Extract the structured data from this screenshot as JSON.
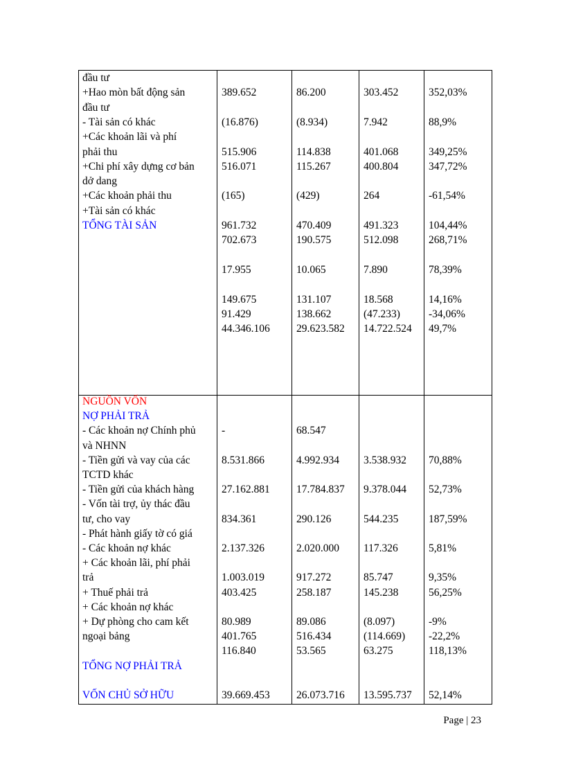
{
  "blocks": [
    {
      "labels": [
        "đầu tư",
        "+Hao mòn bất động sản",
        "đầu tư",
        "- Tài sản có khác",
        "+Các khoản lãi và phí",
        "phải thu",
        "+Chi phí xây dựng cơ bản",
        "dở dang",
        "+Các khoản phải thu",
        "+Tài sản có khác",
        "TỔNG TÀI SẢN"
      ],
      "columns": [
        [
          "389.652",
          "(16.876)",
          "515.906",
          "516.071",
          "(165)",
          "961.732",
          "702.673",
          "17.955",
          "149.675",
          "91.429",
          "44.346.106"
        ],
        [
          "86.200",
          "(8.934)",
          "114.838",
          "115.267",
          "(429)",
          "470.409",
          "190.575",
          "10.065",
          "131.107",
          "138.662",
          "29.623.582"
        ],
        [
          "303.452",
          "7.942",
          "401.068",
          "400.804",
          "264",
          "491.323",
          "512.098",
          "7.890",
          "18.568",
          "(47.233)",
          "14.722.524"
        ],
        [
          "352,03%",
          "88,9%",
          "349,25%",
          "347,72%",
          "-61,54%",
          "104,44%",
          "268,71%",
          "78,39%",
          "14,16%",
          "-34,06%",
          "49,7%"
        ]
      ]
    },
    {
      "labels": [
        "NGUỒN VỐN",
        "NỢ PHẢI TRẢ",
        "- Các khoản nợ Chính phủ",
        "và NHNN",
        "- Tiền gửi và vay của các",
        "TCTD khác",
        "- Tiền gửi của khách hàng",
        "- Vốn tài trợ, ủy thác đầu",
        "tư, cho vay",
        "- Phát hành giấy tờ có giá",
        "- Các khoản nợ khác",
        "+ Các khoản lãi, phí phải",
        "trả",
        "+ Thuế phải trả",
        "+ Các khoản nợ khác",
        "+ Dự phòng cho cam kết",
        "ngoại bảng",
        "TỔNG NỢ PHẢI TRẢ",
        "VỐN CHỦ SỞ HỮU"
      ],
      "columns": [
        [
          "-",
          "8.531.866",
          "27.162.881",
          "834.361",
          "2.137.326",
          "1.003.019",
          "403.425",
          "80.989",
          "401.765",
          "116.840",
          "39.669.453"
        ],
        [
          "68.547",
          "4.992.934",
          "17.784.837",
          "290.126",
          "2.020.000",
          "917.272",
          "258.187",
          "89.086",
          "516.434",
          "53.565",
          "26.073.716"
        ],
        [
          "3.538.932",
          "9.378.044",
          "544.235",
          "117.326",
          "85.747",
          "145.238",
          "(8.097)",
          "(114.669)",
          "63.275",
          "13.595.737"
        ],
        [
          "70,88%",
          "52,73%",
          "187,59%",
          "5,81%",
          "9,35%",
          "56,25%",
          "-9%",
          "-22,2%",
          "118,13%",
          "52,14%"
        ]
      ]
    }
  ],
  "footer": "Page | 23"
}
